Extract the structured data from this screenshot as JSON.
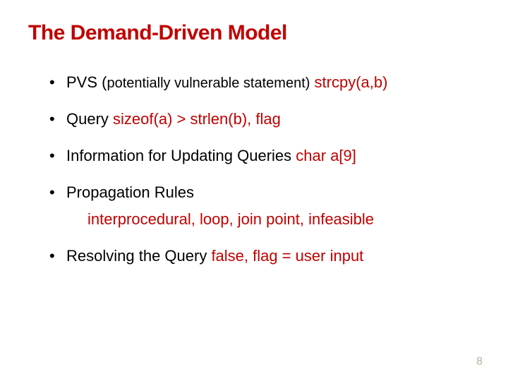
{
  "colors": {
    "title": "#c00000",
    "text": "#000000",
    "highlight": "#c00000",
    "pagenum": "#b9b098",
    "background": "#ffffff"
  },
  "title": "The Demand-Driven Model",
  "bullets": [
    {
      "parts": [
        {
          "text": "PVS (",
          "size": 22
        },
        {
          "text": "potentially vulnerable statement)",
          "size": 20
        },
        {
          "text": "   ",
          "size": 22
        },
        {
          "text": "strcpy(a,b)",
          "size": 22,
          "color": "highlight"
        }
      ]
    },
    {
      "parts": [
        {
          "text": "Query   ",
          "size": 22
        },
        {
          "text": "sizeof(a) > strlen(b), flag",
          "size": 22,
          "color": "highlight"
        }
      ]
    },
    {
      "parts": [
        {
          "text": "Information for Updating Queries    ",
          "size": 22
        },
        {
          "text": "char a[9]",
          "size": 22,
          "color": "highlight"
        }
      ]
    },
    {
      "parts": [
        {
          "text": "Propagation Rules",
          "size": 22
        }
      ],
      "sub": {
        "text": "interprocedural, loop, join point, infeasible",
        "color": "highlight"
      }
    },
    {
      "parts": [
        {
          "text": "Resolving the Query   ",
          "size": 22
        },
        {
          "text": "false, flag = user input",
          "size": 22,
          "color": "highlight"
        }
      ]
    }
  ],
  "page_number": "8"
}
